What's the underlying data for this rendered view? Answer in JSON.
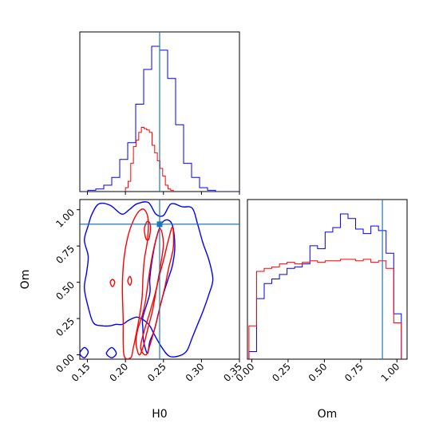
{
  "chart_data": {
    "type": "corner",
    "parameters": [
      "H0",
      "Om"
    ],
    "truth": {
      "H0": 0.245,
      "Om": 0.9
    },
    "marker": {
      "H0": 0.245,
      "Om": 0.9
    },
    "colors": {
      "blue": "#0000ff",
      "red": "#ff0000",
      "truth": "#1f77b4"
    },
    "axes": {
      "H0": {
        "label": "H0",
        "range": [
          0.14,
          0.35
        ],
        "ticks": [
          "0.15",
          "0.20",
          "0.25",
          "0.30",
          "0.35"
        ],
        "tick_values": [
          0.15,
          0.2,
          0.25,
          0.3,
          0.35
        ]
      },
      "Om": {
        "label": "Om",
        "range": [
          -0.03,
          1.07
        ],
        "ticks": [
          "0.00",
          "0.25",
          "0.50",
          "0.75",
          "1.00"
        ],
        "tick_values": [
          0.0,
          0.25,
          0.5,
          0.75,
          1.0
        ]
      }
    },
    "hist_H0": {
      "bin_edges": [
        0.14,
        0.1505,
        0.161,
        0.1715,
        0.182,
        0.1925,
        0.203,
        0.2135,
        0.224,
        0.2345,
        0.245,
        0.2555,
        0.266,
        0.2765,
        0.287,
        0.2975,
        0.308,
        0.3185,
        0.329,
        0.3395,
        0.35
      ],
      "series": [
        {
          "color": "blue",
          "counts": [
            0,
            1,
            2,
            5,
            11,
            25,
            38,
            68,
            95,
            113,
            110,
            88,
            52,
            22,
            11,
            3,
            1,
            0,
            0,
            0
          ]
        },
        {
          "color": "red",
          "counts": [
            0,
            0,
            0,
            0,
            0,
            0,
            0,
            0,
            0,
            0,
            0,
            0,
            0,
            0,
            0,
            0,
            0,
            0,
            0,
            0
          ]
        }
      ],
      "red_bin_edges": [
        0.2,
        0.2035,
        0.207,
        0.2105,
        0.214,
        0.2175,
        0.221,
        0.2245,
        0.228,
        0.2315,
        0.235,
        0.2385,
        0.242,
        0.2455,
        0.249,
        0.2525,
        0.256,
        0.2595,
        0.263
      ],
      "red_counts": [
        3,
        8,
        22,
        35,
        40,
        46,
        50,
        49,
        48,
        46,
        36,
        30,
        24,
        18,
        12,
        5,
        2,
        1
      ]
    },
    "hist_Om": {
      "bin_edges": [
        -0.0195,
        0.033,
        0.0855,
        0.138,
        0.1905,
        0.243,
        0.2955,
        0.348,
        0.4005,
        0.453,
        0.5055,
        0.558,
        0.6105,
        0.663,
        0.7155,
        0.768,
        0.8205,
        0.873,
        0.9255,
        0.978,
        1.0305
      ],
      "series": [
        {
          "color": "blue",
          "counts": [
            5,
            40,
            50,
            53,
            56,
            60,
            61,
            63,
            75,
            73,
            84,
            87,
            96,
            93,
            86,
            83,
            88,
            85,
            70,
            30
          ]
        },
        {
          "color": "red",
          "counts": [
            22,
            58,
            60,
            61,
            63,
            64,
            63,
            64,
            65,
            64,
            65,
            65,
            66,
            66,
            65,
            66,
            64,
            65,
            60,
            24
          ]
        }
      ]
    },
    "contours": [
      {
        "color": "blue",
        "points": [
          [
            0.158,
            0.22
          ],
          [
            0.151,
            0.33
          ],
          [
            0.146,
            0.46
          ],
          [
            0.149,
            0.57
          ],
          [
            0.151,
            0.68
          ],
          [
            0.146,
            0.79
          ],
          [
            0.151,
            0.89
          ],
          [
            0.156,
            0.97
          ],
          [
            0.165,
            1.04
          ],
          [
            0.18,
            1.03
          ],
          [
            0.195,
            0.97
          ],
          [
            0.205,
            1.0
          ],
          [
            0.215,
            1.04
          ],
          [
            0.23,
            1.05
          ],
          [
            0.24,
            0.97
          ],
          [
            0.25,
            0.96
          ],
          [
            0.26,
            1.04
          ],
          [
            0.275,
            1.02
          ],
          [
            0.288,
            1.01
          ],
          [
            0.295,
            0.9
          ],
          [
            0.302,
            0.77
          ],
          [
            0.31,
            0.65
          ],
          [
            0.315,
            0.52
          ],
          [
            0.31,
            0.42
          ],
          [
            0.302,
            0.3
          ],
          [
            0.295,
            0.21
          ],
          [
            0.288,
            0.12
          ],
          [
            0.281,
            0.03
          ],
          [
            0.272,
            -0.005
          ],
          [
            0.258,
            -0.01
          ],
          [
            0.248,
            0.05
          ],
          [
            0.238,
            0.14
          ],
          [
            0.232,
            0.2
          ],
          [
            0.224,
            0.24
          ],
          [
            0.215,
            0.26
          ],
          [
            0.205,
            0.24
          ],
          [
            0.196,
            0.21
          ],
          [
            0.188,
            0.21
          ],
          [
            0.18,
            0.2
          ],
          [
            0.17,
            0.2
          ]
        ]
      },
      {
        "color": "blue",
        "points": [
          [
            0.223,
            0.26
          ],
          [
            0.232,
            0.42
          ],
          [
            0.232,
            0.52
          ],
          [
            0.235,
            0.65
          ],
          [
            0.24,
            0.79
          ],
          [
            0.247,
            0.9
          ],
          [
            0.255,
            0.93
          ],
          [
            0.262,
            0.89
          ],
          [
            0.265,
            0.75
          ],
          [
            0.262,
            0.62
          ],
          [
            0.256,
            0.52
          ],
          [
            0.25,
            0.42
          ],
          [
            0.244,
            0.3
          ],
          [
            0.238,
            0.17
          ],
          [
            0.232,
            0.09
          ],
          [
            0.229,
            0.01
          ],
          [
            0.224,
            0.09
          ],
          [
            0.223,
            0.18
          ]
        ]
      },
      {
        "color": "red",
        "points": [
          [
            0.198,
            0.0
          ],
          [
            0.197,
            0.25
          ],
          [
            0.196,
            0.47
          ],
          [
            0.198,
            0.66
          ],
          [
            0.203,
            0.81
          ],
          [
            0.21,
            0.92
          ],
          [
            0.218,
            0.99
          ],
          [
            0.225,
            1.0
          ],
          [
            0.23,
            0.93
          ],
          [
            0.229,
            0.79
          ],
          [
            0.225,
            0.66
          ],
          [
            0.223,
            0.53
          ],
          [
            0.222,
            0.4
          ],
          [
            0.219,
            0.28
          ],
          [
            0.214,
            0.14
          ],
          [
            0.21,
            0.04
          ],
          [
            0.207,
            -0.02
          ]
        ]
      },
      {
        "color": "red",
        "points": [
          [
            0.214,
            0.08
          ],
          [
            0.216,
            0.17
          ],
          [
            0.222,
            0.27
          ],
          [
            0.226,
            0.36
          ],
          [
            0.229,
            0.47
          ],
          [
            0.232,
            0.58
          ],
          [
            0.236,
            0.7
          ],
          [
            0.241,
            0.81
          ],
          [
            0.246,
            0.87
          ],
          [
            0.25,
            0.77
          ],
          [
            0.247,
            0.64
          ],
          [
            0.243,
            0.52
          ],
          [
            0.239,
            0.4
          ],
          [
            0.235,
            0.29
          ],
          [
            0.229,
            0.17
          ],
          [
            0.223,
            0.05
          ],
          [
            0.218,
            0.0
          ]
        ]
      },
      {
        "color": "red",
        "points": [
          [
            0.22,
            0.05
          ],
          [
            0.225,
            0.17
          ],
          [
            0.232,
            0.29
          ],
          [
            0.239,
            0.42
          ],
          [
            0.245,
            0.55
          ],
          [
            0.251,
            0.67
          ],
          [
            0.256,
            0.78
          ],
          [
            0.262,
            0.88
          ],
          [
            0.263,
            0.74
          ],
          [
            0.257,
            0.6
          ],
          [
            0.252,
            0.47
          ],
          [
            0.246,
            0.34
          ],
          [
            0.24,
            0.21
          ],
          [
            0.233,
            0.08
          ],
          [
            0.227,
            0.0
          ]
        ]
      },
      {
        "color": "red",
        "points": [
          [
            0.225,
            0.87
          ],
          [
            0.229,
            0.92
          ],
          [
            0.233,
            0.89
          ],
          [
            0.231,
            0.8
          ],
          [
            0.227,
            0.8
          ]
        ]
      },
      {
        "color": "red",
        "points": [
          [
            0.18,
            0.5
          ],
          [
            0.183,
            0.52
          ],
          [
            0.186,
            0.5
          ],
          [
            0.183,
            0.47
          ]
        ]
      },
      {
        "color": "red",
        "points": [
          [
            0.203,
            0.51
          ],
          [
            0.206,
            0.54
          ],
          [
            0.208,
            0.51
          ],
          [
            0.206,
            0.48
          ]
        ]
      },
      {
        "color": "blue",
        "points": [
          [
            0.14,
            0.01
          ],
          [
            0.146,
            0.05
          ],
          [
            0.151,
            0.02
          ],
          [
            0.146,
            -0.02
          ]
        ]
      },
      {
        "color": "blue",
        "points": [
          [
            0.175,
            0.01
          ],
          [
            0.182,
            0.05
          ],
          [
            0.188,
            0.01
          ],
          [
            0.182,
            -0.02
          ]
        ]
      }
    ]
  }
}
